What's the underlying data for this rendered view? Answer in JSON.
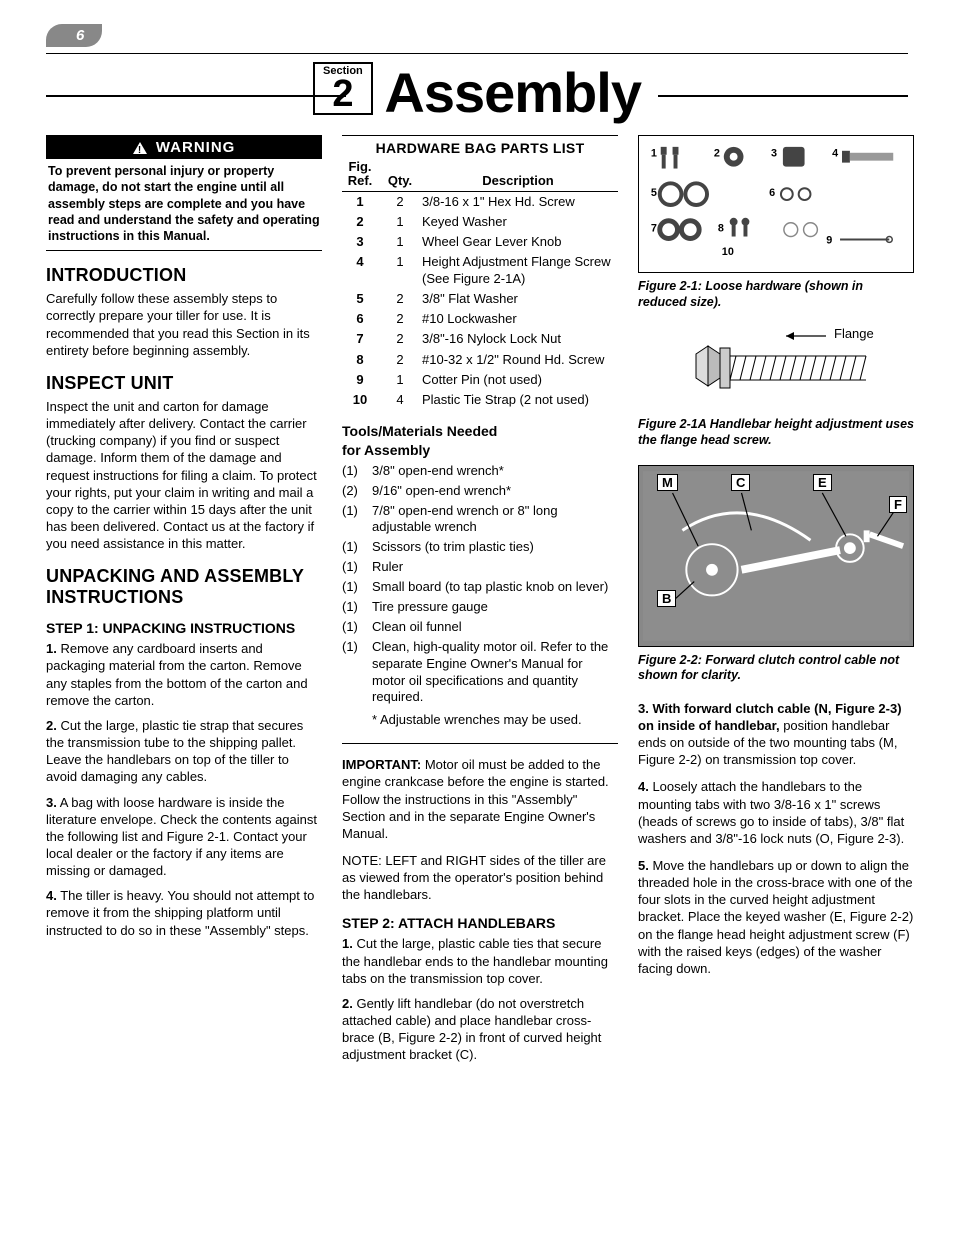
{
  "page_number": "6",
  "section_label": "Section",
  "section_number": "2",
  "section_title": "Assembly",
  "warning": {
    "heading": "WARNING",
    "body": "To prevent personal injury or property damage, do not start the engine until all assembly steps are complete and you have read and understand the safety and operating instructions in this Manual."
  },
  "col1": {
    "intro_h": "INTRODUCTION",
    "intro_p": "Carefully follow these assembly steps to correctly prepare your tiller for use.  It is recommended that you read this Section in its entirety before beginning assembly.",
    "inspect_h": "INSPECT UNIT",
    "inspect_p": "Inspect the unit and carton for damage immediately after delivery.  Contact the carrier (trucking company) if you find or suspect damage.  Inform them of the damage and request instructions for filing a claim.  To protect your rights, put your claim in writing and mail a copy to the carrier within 15 days after the unit has been delivered. Contact us at the factory if you need assistance in this matter.",
    "unpack_h": "UNPACKING AND ASSEMBLY INSTRUCTIONS",
    "step1_h": "STEP 1: UNPACKING INSTRUCTIONS",
    "step1_items": [
      {
        "n": "1.",
        "t": "Remove any cardboard inserts and packaging material from the carton. Remove any staples from the bottom of the carton and remove the carton."
      },
      {
        "n": "2.",
        "t": "Cut the large, plastic tie strap that secures the transmission tube to the shipping pallet.  Leave the handlebars on top of the tiller to avoid damaging any cables."
      },
      {
        "n": "3.",
        "t": "A bag with loose hardware is inside the literature envelope.  Check the contents against the following list and Figure 2-1.  Contact your local dealer or the factory if any items are missing or damaged."
      },
      {
        "n": "4.",
        "t": "The tiller is heavy.  You should not attempt to remove it from the shipping platform until instructed to do so in these \"Assembly\" steps."
      }
    ]
  },
  "parts": {
    "heading": "HARDWARE BAG PARTS LIST",
    "cols": {
      "ref": "Fig.\nRef.",
      "qty": "Qty.",
      "desc": "Description"
    },
    "rows": [
      {
        "ref": "1",
        "qty": "2",
        "desc": "3/8-16 x 1\" Hex Hd. Screw"
      },
      {
        "ref": "2",
        "qty": "1",
        "desc": "Keyed Washer"
      },
      {
        "ref": "3",
        "qty": "1",
        "desc": "Wheel Gear Lever Knob"
      },
      {
        "ref": "4",
        "qty": "1",
        "desc": "Height Adjustment Flange Screw  (See Figure 2-1A)"
      },
      {
        "ref": "5",
        "qty": "2",
        "desc": "3/8\" Flat Washer"
      },
      {
        "ref": "6",
        "qty": "2",
        "desc": "#10 Lockwasher"
      },
      {
        "ref": "7",
        "qty": "2",
        "desc": "3/8\"-16 Nylock Lock Nut"
      },
      {
        "ref": "8",
        "qty": "2",
        "desc": "#10-32 x 1/2\" Round Hd. Screw"
      },
      {
        "ref": "9",
        "qty": "1",
        "desc": "Cotter Pin (not used)"
      },
      {
        "ref": "10",
        "qty": "4",
        "desc": "Plastic Tie Strap (2 not used)"
      }
    ]
  },
  "tools": {
    "heading": "Tools/Materials Needed\nfor Assembly",
    "items": [
      {
        "q": "(1)",
        "d": "3/8\" open-end wrench*"
      },
      {
        "q": "(2)",
        "d": "9/16\" open-end wrench*"
      },
      {
        "q": "(1)",
        "d": "7/8\" open-end wrench or 8\" long adjustable wrench"
      },
      {
        "q": "(1)",
        "d": "Scissors (to trim plastic ties)"
      },
      {
        "q": "(1)",
        "d": "Ruler"
      },
      {
        "q": "(1)",
        "d": "Small board (to tap plastic knob on lever)"
      },
      {
        "q": "(1)",
        "d": "Tire pressure gauge"
      },
      {
        "q": "(1)",
        "d": "Clean oil funnel"
      },
      {
        "q": "(1)",
        "d": "Clean, high-quality motor oil. Refer to the separate Engine Owner's Manual for motor oil specifications and quantity required."
      }
    ],
    "note": "* Adjustable wrenches may be used."
  },
  "important_label": "IMPORTANT:",
  "important_text": "Motor oil must be added to the engine crankcase before the engine is started.  Follow the instructions in this \"Assembly\" Section and in the separate Engine Owner's Manual.",
  "note_text": "NOTE: LEFT and RIGHT sides of the tiller are as viewed from the operator's position behind the handlebars.",
  "step2_h": "STEP 2: ATTACH HANDLEBARS",
  "step2_items": [
    {
      "n": "1.",
      "t": "Cut the large, plastic cable ties that secure the handlebar ends to the handlebar mounting tabs on the transmission top cover."
    },
    {
      "n": "2.",
      "t": "Gently lift handlebar (do not overstretch attached cable) and place handlebar cross-brace (B, Figure 2-2) in front of curved height adjustment bracket (C)."
    }
  ],
  "col3": {
    "fig21_caption": "Figure 2-1: Loose hardware (shown in reduced size).",
    "fig21a_caption": "Figure 2-1A  Handlebar height adjustment uses the flange head screw.",
    "fig22_caption": "Figure 2-2:  Forward clutch control cable not shown for clarity.",
    "flange_label": "Flange",
    "callouts": {
      "M": "M",
      "C": "C",
      "E": "E",
      "F": "F",
      "B": "B"
    },
    "hw_nums": [
      "1",
      "2",
      "3",
      "4",
      "5",
      "6",
      "7",
      "8",
      "9",
      "10"
    ],
    "p3a": "3.  With forward clutch cable (N, Figure 2-3) on inside of handlebar,",
    "p3b": " position handlebar ends on outside of the two mounting tabs (M, Figure 2-2) on transmission top cover.",
    "p4a": "4.",
    "p4b": "  Loosely attach the handlebars to the mounting tabs with two 3/8-16 x 1\" screws (heads of screws go to inside of tabs), 3/8\" flat washers and 3/8\"-16 lock nuts (O, Figure 2-3).",
    "p5a": "5.",
    "p5b": "  Move the handlebars up or down to align the threaded hole in the cross-brace with one of the four slots in the curved height adjustment bracket.  Place the keyed washer (E, Figure 2-2) on the flange head height adjustment screw (F) with the raised keys (edges) of the washer facing down."
  }
}
